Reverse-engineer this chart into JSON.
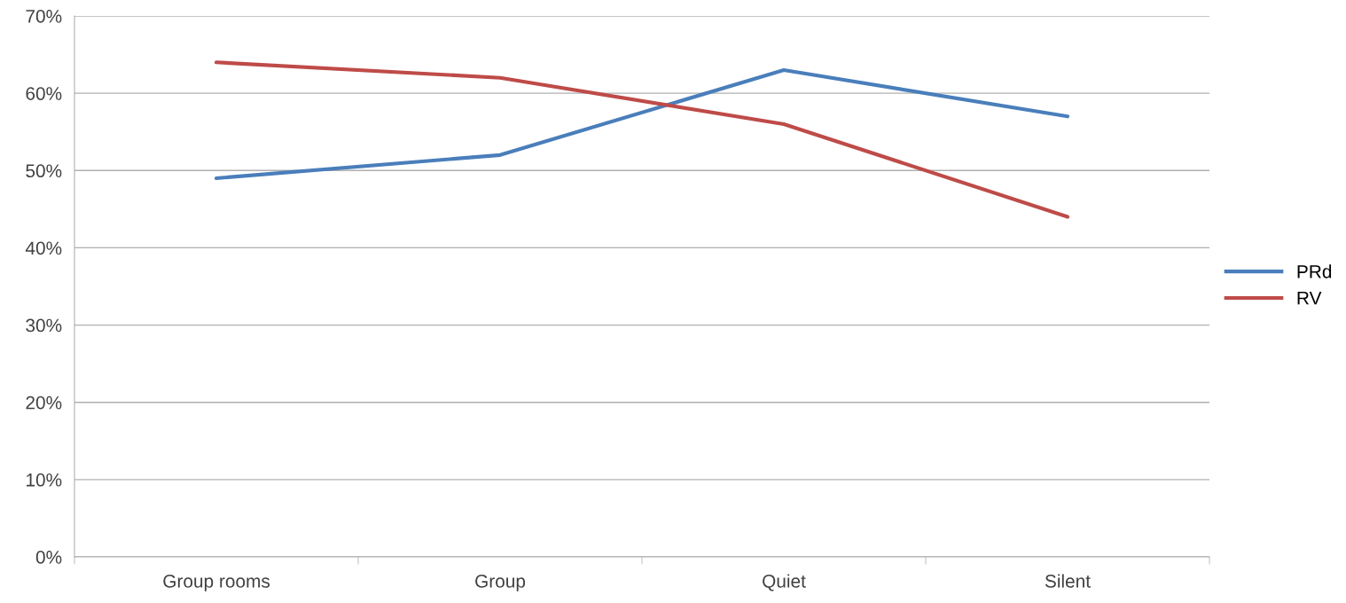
{
  "chart_data": {
    "type": "line",
    "categories": [
      "Group rooms",
      "Group",
      "Quiet",
      "Silent"
    ],
    "series": [
      {
        "name": "PRd",
        "color": "#4a7ebb",
        "values": [
          0.49,
          0.52,
          0.63,
          0.57
        ]
      },
      {
        "name": "RV",
        "color": "#be4b48",
        "values": [
          0.64,
          0.62,
          0.56,
          0.44
        ]
      }
    ],
    "ylim": [
      0,
      0.7
    ],
    "yticks": [
      {
        "value": 0,
        "label": "0%"
      },
      {
        "value": 0.1,
        "label": "10%"
      },
      {
        "value": 0.2,
        "label": "20%"
      },
      {
        "value": 0.3,
        "label": "30%"
      },
      {
        "value": 0.4,
        "label": "40%"
      },
      {
        "value": 0.5,
        "label": "50%"
      },
      {
        "value": 0.6,
        "label": "60%"
      },
      {
        "value": 0.7,
        "label": "70%"
      }
    ],
    "grid": "y",
    "legend": "right",
    "marker": "none",
    "line_style": "solid"
  }
}
